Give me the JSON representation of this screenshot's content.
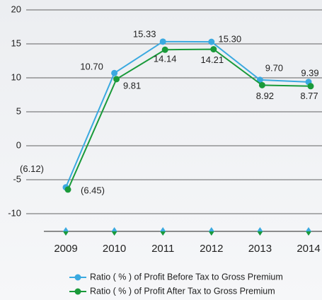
{
  "chart_data": {
    "type": "line",
    "categories": [
      "2009",
      "2010",
      "2011",
      "2012",
      "2013",
      "2014"
    ],
    "series": [
      {
        "name": "Ratio ( % ) of Profit Before Tax to Gross Premium",
        "color": "#3aa9e0",
        "values": [
          -6.12,
          10.7,
          15.33,
          15.3,
          9.7,
          9.39
        ],
        "value_labels": [
          "(6.12)",
          "10.70",
          "15.33",
          "15.30",
          "9.70",
          "9.39"
        ]
      },
      {
        "name": "Ratio ( % ) of Profit After Tax to Gross Premium",
        "color": "#1a9a3a",
        "values": [
          -6.45,
          9.81,
          14.14,
          14.21,
          8.92,
          8.77
        ],
        "value_labels": [
          "(6.45)",
          "9.81",
          "14.14",
          "14.21",
          "8.92",
          "8.77"
        ]
      }
    ],
    "ylim": [
      -10,
      20
    ],
    "yticks": [
      20,
      15,
      10,
      5,
      0,
      -5,
      -10
    ],
    "grid": true
  }
}
